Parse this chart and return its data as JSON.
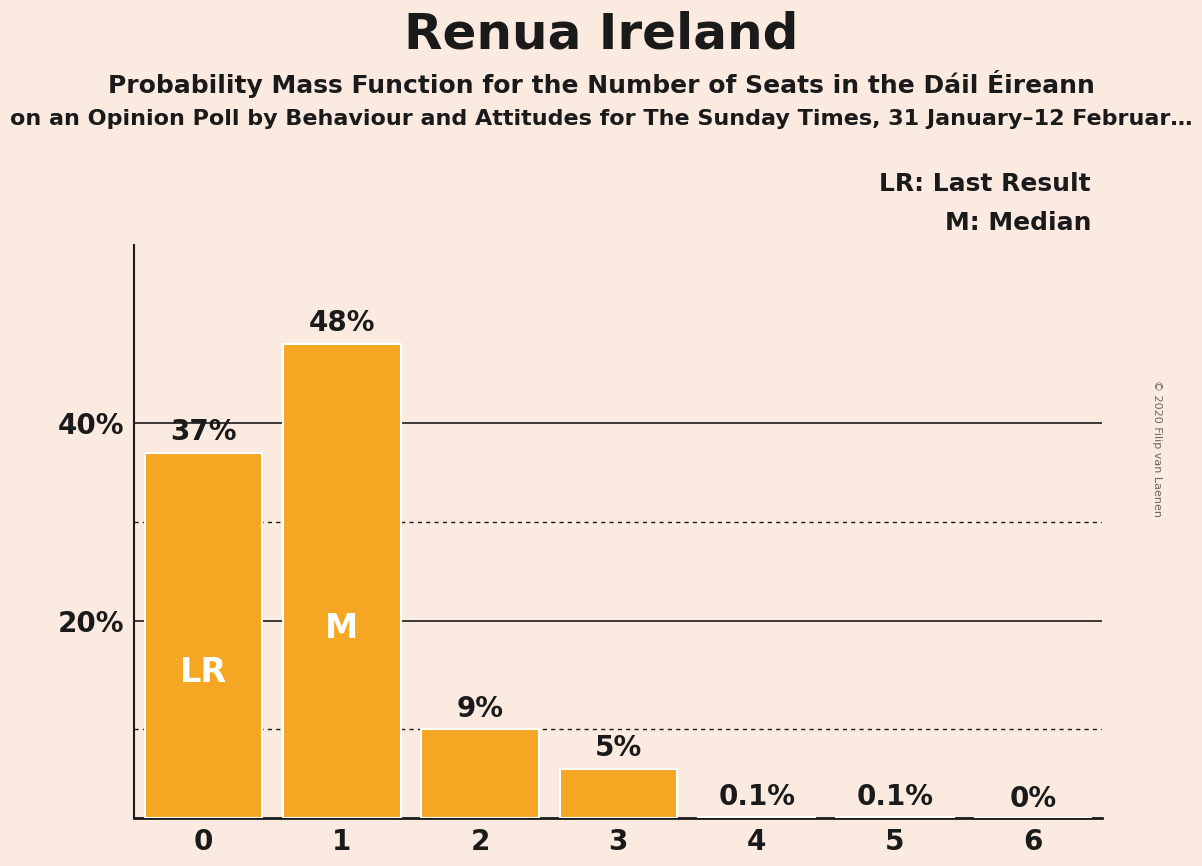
{
  "title": "Renua Ireland",
  "subtitle": "Probability Mass Function for the Number of Seats in the Dáil Éireann",
  "subtitle2": "on an Opinion Poll by Behaviour and Attitudes for The Sunday Times, 31 January–12 Februar…",
  "copyright": "© 2020 Filip van Laenen",
  "categories": [
    0,
    1,
    2,
    3,
    4,
    5,
    6
  ],
  "values": [
    0.37,
    0.48,
    0.09,
    0.05,
    0.001,
    0.001,
    0.0
  ],
  "labels": [
    "37%",
    "48%",
    "9%",
    "5%",
    "0.1%",
    "0.1%",
    "0%"
  ],
  "bar_color": "#F5A623",
  "bar_edge_color": "#FFFFFF",
  "background_color": "#FAEAE0",
  "text_color": "#1a1a1a",
  "label_inside": {
    "0": "LR",
    "1": "M"
  },
  "label_inside_color": "#FFFFFF",
  "legend_text": [
    "LR: Last Result",
    "M: Median"
  ],
  "solid_gridlines": [
    0.2,
    0.4
  ],
  "dotted_gridlines": [
    0.09,
    0.3
  ],
  "ylim": [
    0,
    0.58
  ],
  "xlim": [
    -0.5,
    6.5
  ],
  "title_fontsize": 36,
  "subtitle_fontsize": 18,
  "subtitle2_fontsize": 16,
  "tick_fontsize": 20,
  "bar_label_fontsize": 20,
  "inside_label_fontsize": 24,
  "legend_fontsize": 18
}
